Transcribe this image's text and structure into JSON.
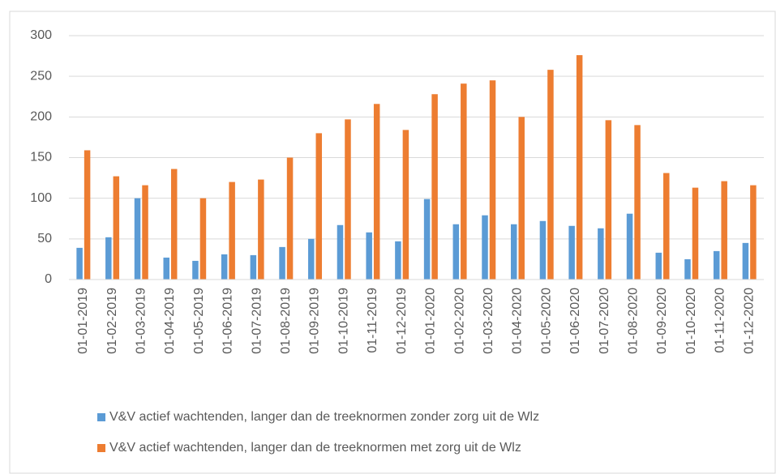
{
  "chart_data": {
    "type": "bar",
    "categories": [
      "01-01-2019",
      "01-02-2019",
      "01-03-2019",
      "01-04-2019",
      "01-05-2019",
      "01-06-2019",
      "01-07-2019",
      "01-08-2019",
      "01-09-2019",
      "01-10-2019",
      "01-11-2019",
      "01-12-2019",
      "01-01-2020",
      "01-02-2020",
      "01-03-2020",
      "01-04-2020",
      "01-05-2020",
      "01-06-2020",
      "01-07-2020",
      "01-08-2020",
      "01-09-2020",
      "01-10-2020",
      "01-11-2020",
      "01-12-2020"
    ],
    "series": [
      {
        "name": "V&V actief wachtenden, langer dan de treeknormen zonder zorg uit de Wlz",
        "color": "#5b9bd5",
        "values": [
          39,
          52,
          100,
          27,
          23,
          31,
          30,
          40,
          50,
          67,
          58,
          47,
          99,
          68,
          79,
          68,
          72,
          66,
          63,
          81,
          33,
          25,
          35,
          45
        ]
      },
      {
        "name": "V&V actief wachtenden, langer dan de treeknormen met zorg uit de Wlz",
        "color": "#ed7d31",
        "values": [
          159,
          127,
          116,
          136,
          100,
          120,
          123,
          150,
          180,
          197,
          216,
          184,
          228,
          241,
          245,
          200,
          258,
          276,
          196,
          190,
          131,
          113,
          121,
          116
        ]
      }
    ],
    "ylim": [
      0,
      300
    ],
    "yticks": [
      0,
      50,
      100,
      150,
      200,
      250,
      300
    ],
    "grid": true,
    "legend": "bottom"
  }
}
